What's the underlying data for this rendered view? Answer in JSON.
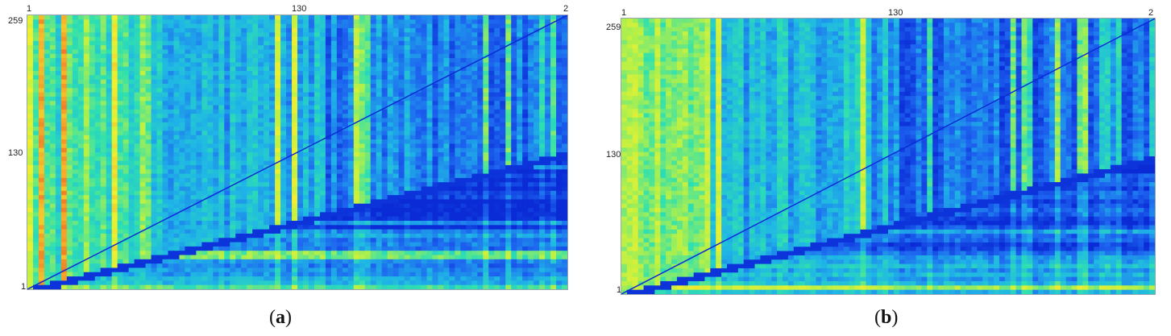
{
  "figure": {
    "panels": [
      {
        "id": "a",
        "caption_open": "(",
        "caption_letter": "a",
        "caption_close": ")"
      },
      {
        "id": "b",
        "caption_open": "(",
        "caption_letter": "b",
        "caption_close": ")"
      }
    ]
  },
  "chart_data": [
    {
      "type": "heatmap",
      "title": "",
      "xlabel": "",
      "ylabel": "",
      "x_ticks": [
        "1",
        "130",
        "2"
      ],
      "y_ticks": [
        "259",
        "130",
        "1"
      ],
      "x_range": [
        1,
        259
      ],
      "y_range": [
        1,
        259
      ],
      "colormap": [
        "#0a2bd6",
        "#1e66f0",
        "#1fb6e6",
        "#2ee0b0",
        "#b6f046",
        "#f3ef2e",
        "#f3a02a",
        "#e4331f"
      ],
      "grid": false,
      "legend": "none"
    },
    {
      "type": "heatmap",
      "title": "",
      "xlabel": "",
      "ylabel": "",
      "x_ticks": [
        "1",
        "130",
        "2"
      ],
      "y_ticks": [
        "259",
        "130",
        "1"
      ],
      "x_range": [
        1,
        259
      ],
      "y_range": [
        1,
        259
      ],
      "colormap": [
        "#0a2bd6",
        "#1e66f0",
        "#1fb6e6",
        "#2ee0b0",
        "#b6f046",
        "#f3ef2e",
        "#f3a02a",
        "#e4331f"
      ],
      "grid": false,
      "legend": "none"
    }
  ]
}
